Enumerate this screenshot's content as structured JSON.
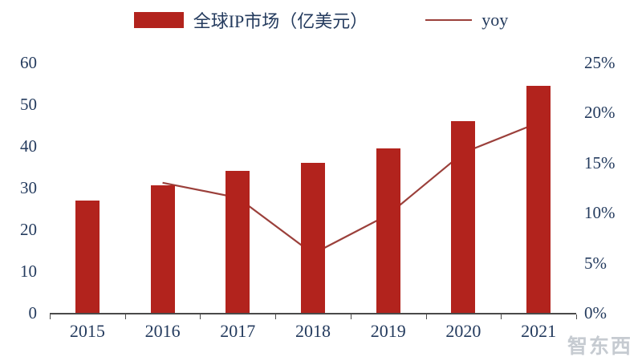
{
  "chart_data": {
    "type": "bar",
    "subtype": "bar+line combo, dual axis",
    "title": "",
    "categories": [
      "2015",
      "2016",
      "2017",
      "2018",
      "2019",
      "2020",
      "2021"
    ],
    "series": [
      {
        "name": "全球IP市场（亿美元）",
        "type": "bar",
        "axis": "left",
        "color": "#B2231D",
        "values": [
          27,
          30.5,
          34,
          36,
          39.5,
          46,
          54.5
        ]
      },
      {
        "name": "yoy",
        "type": "line",
        "axis": "right",
        "color": "#9B403B",
        "values": [
          null,
          13,
          11.5,
          5.9,
          9.8,
          16,
          19
        ]
      }
    ],
    "left_axis": {
      "min": 0,
      "max": 60,
      "ticks": [
        "0",
        "10",
        "20",
        "30",
        "40",
        "50",
        "60"
      ]
    },
    "right_axis": {
      "min": 0,
      "max": 25,
      "ticks": [
        "0%",
        "5%",
        "10%",
        "15%",
        "20%",
        "25%"
      ]
    },
    "legend_position": "top",
    "grid": false
  },
  "watermark": "智东西",
  "colors": {
    "bar": "#B2231D",
    "line": "#9B403B",
    "text": "#243B5E",
    "axis": "#4a4a4a",
    "watermark": "#c6cbd1",
    "background": "#ffffff"
  }
}
